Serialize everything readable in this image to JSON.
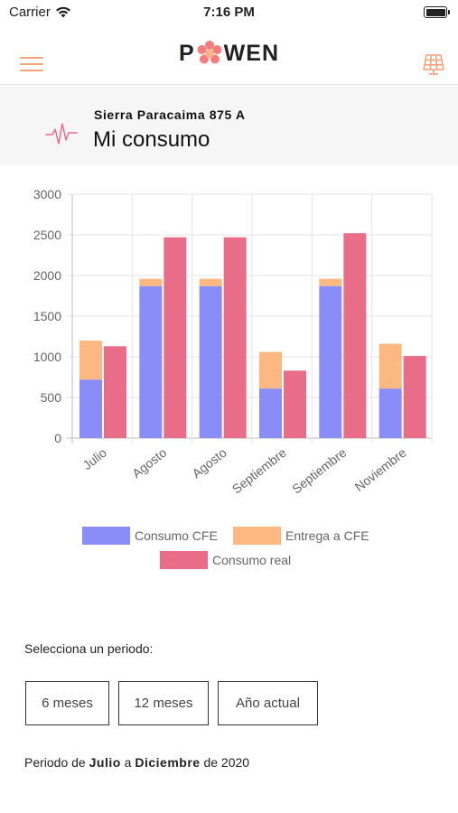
{
  "status_bar": {
    "carrier": "Carrier",
    "time": "7:16 PM"
  },
  "navbar": {
    "logo_left": "P",
    "logo_right": "WEN",
    "menu_icon": "hamburger-icon",
    "solar_icon": "solar-panel-icon",
    "accent_color": "#f4a47a"
  },
  "header": {
    "address": "Sierra Paracaima 875 A",
    "title": "Mi consumo",
    "icon": "pulse-icon"
  },
  "chart_data": {
    "type": "bar",
    "stacked_series": [
      "Consumo CFE",
      "Entrega a CFE"
    ],
    "categories": [
      "Julio",
      "Agosto",
      "Agosto",
      "Septiembre",
      "Septiembre",
      "Noviembre"
    ],
    "series": [
      {
        "name": "Consumo CFE",
        "color": "#8a8cf7",
        "values": [
          720,
          1870,
          1870,
          610,
          1870,
          610
        ]
      },
      {
        "name": "Entrega a CFE",
        "color": "#fdb882",
        "values": [
          480,
          90,
          90,
          450,
          90,
          550
        ]
      },
      {
        "name": "Consumo real",
        "color": "#e96d89",
        "values": [
          1130,
          2470,
          2470,
          830,
          2520,
          1010
        ]
      }
    ],
    "yticks": [
      "0",
      "500",
      "1000",
      "1500",
      "2000",
      "2500",
      "3000"
    ],
    "ylim": [
      0,
      3000
    ],
    "grid": true,
    "legend_position": "bottom"
  },
  "period": {
    "label": "Selecciona un periodo:",
    "options": [
      "6 meses",
      "12 meses",
      "Año actual"
    ],
    "summary_prefix": "Periodo de",
    "summary_from": "Julio",
    "summary_mid": "a",
    "summary_to": "Diciembre",
    "summary_de": "de",
    "summary_year": "2020"
  }
}
